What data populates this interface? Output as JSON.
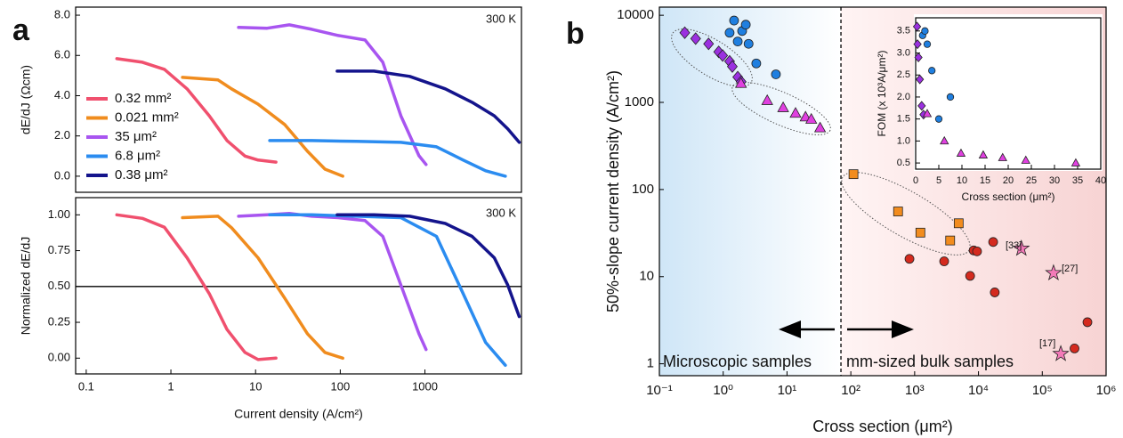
{
  "chart_data": [
    {
      "type": "line",
      "panel_label": "a",
      "annotation": "300 K",
      "ylabel": "dE/dJ (Ωcm)",
      "xscale": "log",
      "xlim": [
        0.075,
        13800
      ],
      "ylim": [
        -0.8,
        8.4
      ],
      "yticks": [
        {
          "value": 0,
          "label": "0.0"
        },
        {
          "value": 2,
          "label": "2.0"
        },
        {
          "value": 4,
          "label": "4.0"
        },
        {
          "value": 6,
          "label": "6.0"
        },
        {
          "value": 8,
          "label": "8.0"
        }
      ],
      "series": [
        {
          "name": "0.32 mm²",
          "color": "#f0506e",
          "x": [
            0.23,
            0.46,
            0.84,
            1.55,
            2.84,
            4.6,
            7.5,
            10.7,
            17.4
          ],
          "values": [
            5.84,
            5.66,
            5.31,
            4.34,
            3.0,
            1.77,
            1.0,
            0.8,
            0.7
          ]
        },
        {
          "name": "0.021 mm²",
          "color": "#f08c1e",
          "x": [
            1.37,
            3.6,
            5.2,
            10.7,
            22,
            41,
            66,
            107
          ],
          "values": [
            4.91,
            4.78,
            4.34,
            3.58,
            2.57,
            1.24,
            0.35,
            0
          ]
        },
        {
          "name": "35 μm²",
          "color": "#a855f0",
          "x": [
            6.3,
            13.7,
            25,
            46,
            95,
            196,
            318,
            520,
            850,
            1030
          ],
          "values": [
            7.39,
            7.35,
            7.52,
            7.3,
            6.99,
            6.77,
            5.66,
            3.0,
            1.02,
            0.58
          ]
        },
        {
          "name": "6.8 μm²",
          "color": "#2b8cf0",
          "x": [
            14.7,
            46,
            154,
            520,
            1370,
            2830,
            5200,
            8900
          ],
          "values": [
            1.77,
            1.77,
            1.73,
            1.68,
            1.46,
            0.8,
            0.27,
            0
          ]
        },
        {
          "name": "0.38 μm²",
          "color": "#14148c",
          "x": [
            92,
            250,
            660,
            1740,
            3600,
            6600,
            9500,
            13000
          ],
          "values": [
            5.22,
            5.22,
            4.96,
            4.34,
            3.67,
            3.0,
            2.35,
            1.68
          ]
        }
      ]
    },
    {
      "type": "line",
      "annotation": "300 K",
      "ylabel": "Normalized dE/dJ",
      "xlabel": "Current density (A/cm²)",
      "xscale": "log",
      "xlim": [
        0.075,
        13800
      ],
      "ylim": [
        -0.11,
        1.12
      ],
      "hline": 0.5,
      "xticks": [
        0.1,
        1,
        10,
        100,
        1000
      ],
      "yticks": [
        {
          "value": 0,
          "label": "0.00"
        },
        {
          "value": 0.25,
          "label": "0.25"
        },
        {
          "value": 0.5,
          "label": "0.50"
        },
        {
          "value": 0.75,
          "label": "0.75"
        },
        {
          "value": 1,
          "label": "1.00"
        }
      ],
      "series": [
        {
          "color": "#f0506e",
          "x": [
            0.23,
            0.46,
            0.84,
            1.55,
            2.84,
            4.6,
            7.5,
            10.7,
            17.4
          ],
          "values": [
            1.0,
            0.975,
            0.913,
            0.7,
            0.45,
            0.2,
            0.04,
            -0.01,
            0.0
          ]
        },
        {
          "color": "#f08c1e",
          "x": [
            1.37,
            3.6,
            5.2,
            10.7,
            22,
            41,
            66,
            107
          ],
          "values": [
            0.98,
            0.99,
            0.91,
            0.7,
            0.42,
            0.17,
            0.04,
            0.0
          ]
        },
        {
          "color": "#a855f0",
          "x": [
            6.3,
            13.7,
            25,
            46,
            95,
            196,
            318,
            520,
            850,
            1030
          ],
          "values": [
            0.99,
            1.0,
            1.01,
            0.99,
            0.98,
            0.96,
            0.85,
            0.51,
            0.17,
            0.06
          ]
        },
        {
          "color": "#2b8cf0",
          "x": [
            14.7,
            46,
            154,
            520,
            1370,
            2830,
            5200,
            8900
          ],
          "values": [
            1.0,
            1.0,
            0.99,
            0.98,
            0.85,
            0.45,
            0.11,
            -0.05
          ]
        },
        {
          "color": "#14148c",
          "x": [
            92,
            250,
            660,
            1740,
            3600,
            6600,
            9500,
            13000
          ],
          "values": [
            1.0,
            1.0,
            0.99,
            0.94,
            0.85,
            0.7,
            0.51,
            0.29
          ]
        }
      ]
    },
    {
      "type": "scatter",
      "panel_label": "b",
      "ylabel": "50%-slope current density (A/cm²)",
      "xlabel": "Cross section (μm²)",
      "xscale": "log",
      "yscale": "log",
      "xlim": [
        0.1,
        1000000
      ],
      "ylim": [
        0.73,
        12400
      ],
      "vline": 70,
      "xticks": [
        {
          "value": 0.1,
          "label": "10⁻¹"
        },
        {
          "value": 1,
          "label": "10⁰"
        },
        {
          "value": 10,
          "label": "10¹"
        },
        {
          "value": 100,
          "label": "10²"
        },
        {
          "value": 1000,
          "label": "10³"
        },
        {
          "value": 10000,
          "label": "10⁴"
        },
        {
          "value": 100000,
          "label": "10⁵"
        },
        {
          "value": 1000000,
          "label": "10⁶"
        }
      ],
      "yticks": [
        1,
        10,
        100,
        1000,
        10000
      ],
      "annotations": [
        "[33]",
        "[27]",
        "[17]",
        "Microscopic samples",
        "mm-sized bulk samples"
      ],
      "series": [
        {
          "marker": "diamond",
          "color": "#9b30e0",
          "x": [
            0.25,
            0.37,
            0.59,
            0.85,
            0.98,
            1.26,
            1.39,
            1.69,
            1.91
          ],
          "values": [
            6300,
            5400,
            4700,
            3800,
            3450,
            2960,
            2580,
            1950,
            1730
          ]
        },
        {
          "marker": "circle",
          "color": "#1f7fe0",
          "x": [
            1.26,
            1.48,
            1.69,
            1.98,
            2.26,
            2.5,
            3.3,
            6.7
          ],
          "values": [
            6300,
            8700,
            5000,
            6600,
            7800,
            4700,
            2800,
            2100
          ]
        },
        {
          "marker": "triangle",
          "color": "#e040e0",
          "x": [
            1.9,
            4.9,
            8.7,
            13.6,
            19.5,
            24,
            33
          ],
          "values": [
            1650,
            1050,
            870,
            750,
            680,
            640,
            510
          ]
        },
        {
          "marker": "square",
          "color": "#f28c1e",
          "x": [
            110,
            550,
            1230,
            3600,
            4900
          ],
          "values": [
            150,
            56,
            32,
            26,
            41
          ]
        },
        {
          "marker": "circle",
          "color": "#d42a1e",
          "x": [
            830,
            2900,
            7400,
            8400,
            9500,
            17000,
            18000,
            510000,
            320000
          ],
          "values": [
            16,
            15,
            10.2,
            20,
            19.5,
            25,
            6.6,
            3.0,
            1.5
          ]
        },
        {
          "marker": "star",
          "color": "#f37ab8",
          "x": [
            47000,
            150000,
            195000
          ],
          "values": [
            21,
            11,
            1.3
          ]
        }
      ]
    },
    {
      "type": "scatter",
      "ylabel": "FOM (x 10³A/μm²)",
      "xlabel": "Cross section (μm²)",
      "xlim": [
        0,
        40
      ],
      "ylim": [
        0.36,
        3.8
      ],
      "xticks": [
        0,
        5,
        10,
        15,
        20,
        25,
        30,
        35,
        40
      ],
      "yticks": [
        {
          "value": 0.5,
          "label": "0.5"
        },
        {
          "value": 1,
          "label": "1.0"
        },
        {
          "value": 1.5,
          "label": "1.5"
        },
        {
          "value": 2,
          "label": "2.0"
        },
        {
          "value": 2.5,
          "label": "2.5"
        },
        {
          "value": 3,
          "label": "3.0"
        },
        {
          "value": 3.5,
          "label": "3.5"
        }
      ],
      "series": [
        {
          "marker": "diamond",
          "color": "#9b30e0",
          "x": [
            0.3,
            0.4,
            0.6,
            0.9,
            1.3,
            1.7
          ],
          "values": [
            3.6,
            3.2,
            2.9,
            2.4,
            1.8,
            1.6
          ]
        },
        {
          "marker": "circle",
          "color": "#1f7fe0",
          "x": [
            1.5,
            2.0,
            2.5,
            3.5,
            5,
            7.5
          ],
          "values": [
            3.4,
            3.5,
            3.2,
            2.6,
            1.5,
            2.0
          ]
        },
        {
          "marker": "triangle",
          "color": "#e040e0",
          "x": [
            2.5,
            6.2,
            9.8,
            14.6,
            18.8,
            23.8,
            34.6
          ],
          "values": [
            1.62,
            1.0,
            0.72,
            0.68,
            0.62,
            0.56,
            0.5
          ]
        }
      ]
    }
  ]
}
